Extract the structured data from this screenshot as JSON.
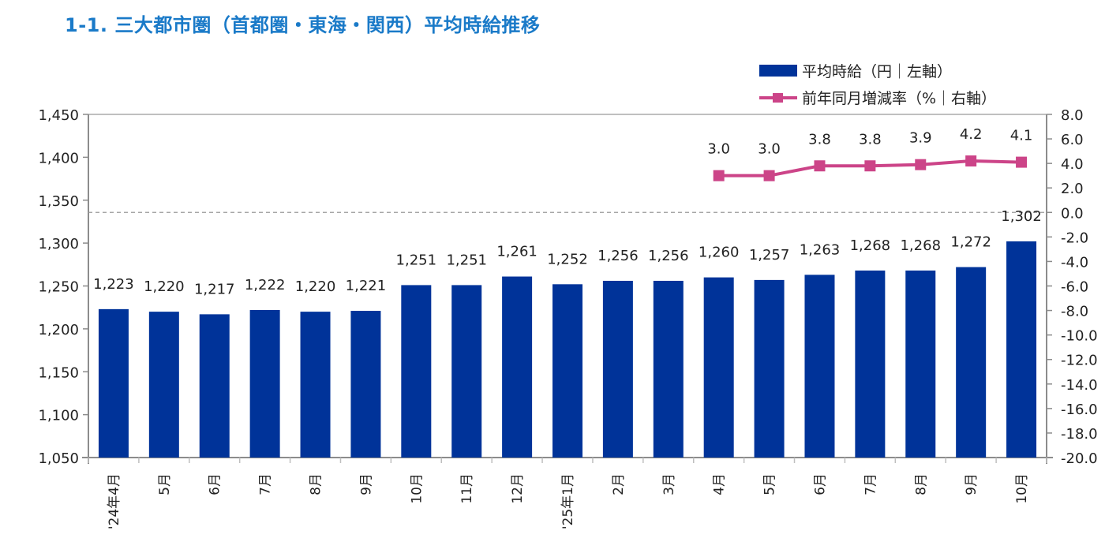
{
  "title": "1-1. 三大都市圏（首都圏・東海・関西）平均時給推移",
  "colors": {
    "title": "#1a7ac8",
    "bar": "#003399",
    "line": "#cc4488",
    "axis": "#8c8c8c",
    "zero_line": "#999999"
  },
  "chart_data": {
    "type": "bar",
    "title": "1-1. 三大都市圏（首都圏・東海・関西）平均時給推移",
    "categories": [
      "'24年4月",
      "5月",
      "6月",
      "7月",
      "8月",
      "9月",
      "10月",
      "11月",
      "12月",
      "'25年1月",
      "2月",
      "3月",
      "4月",
      "5月",
      "6月",
      "7月",
      "8月",
      "9月",
      "10月"
    ],
    "series": [
      {
        "name": "平均時給（円｜左軸）",
        "type": "bar",
        "axis": "left",
        "values": [
          1223,
          1220,
          1217,
          1222,
          1220,
          1221,
          1251,
          1251,
          1261,
          1252,
          1256,
          1256,
          1260,
          1257,
          1263,
          1268,
          1268,
          1272,
          1302
        ],
        "labels": [
          "1,223",
          "1,220",
          "1,217",
          "1,222",
          "1,220",
          "1,221",
          "1,251",
          "1,251",
          "1,261",
          "1,252",
          "1,256",
          "1,256",
          "1,260",
          "1,257",
          "1,263",
          "1,268",
          "1,268",
          "1,272",
          "1,302"
        ]
      },
      {
        "name": "前年同月増減率（%｜右軸）",
        "type": "line",
        "axis": "right",
        "values": [
          null,
          null,
          null,
          null,
          null,
          null,
          null,
          null,
          null,
          null,
          null,
          null,
          3.0,
          3.0,
          3.8,
          3.8,
          3.9,
          4.2,
          4.1
        ],
        "labels": [
          null,
          null,
          null,
          null,
          null,
          null,
          null,
          null,
          null,
          null,
          null,
          null,
          "3.0",
          "3.0",
          "3.8",
          "3.8",
          "3.9",
          "4.2",
          "4.1"
        ]
      }
    ],
    "left_axis": {
      "ylim": [
        1050,
        1450
      ],
      "ticks": [
        "1,450",
        "1,400",
        "1,350",
        "1,300",
        "1,250",
        "1,200",
        "1,150",
        "1,100",
        "1,050"
      ]
    },
    "right_axis": {
      "ylim": [
        -20,
        8
      ],
      "ticks": [
        "8.0",
        "6.0",
        "4.0",
        "2.0",
        "0.0",
        "-2.0",
        "-4.0",
        "-6.0",
        "-8.0",
        "-10.0",
        "-12.0",
        "-14.0",
        "-16.0",
        "-18.0",
        "-20.0"
      ]
    },
    "reference_line": {
      "axis": "right",
      "value": 0,
      "style": "dashed"
    },
    "grid": false,
    "legend": {
      "position": "top-right",
      "entries": [
        "平均時給（円｜左軸）",
        "前年同月増減率（%｜右軸）"
      ]
    }
  }
}
